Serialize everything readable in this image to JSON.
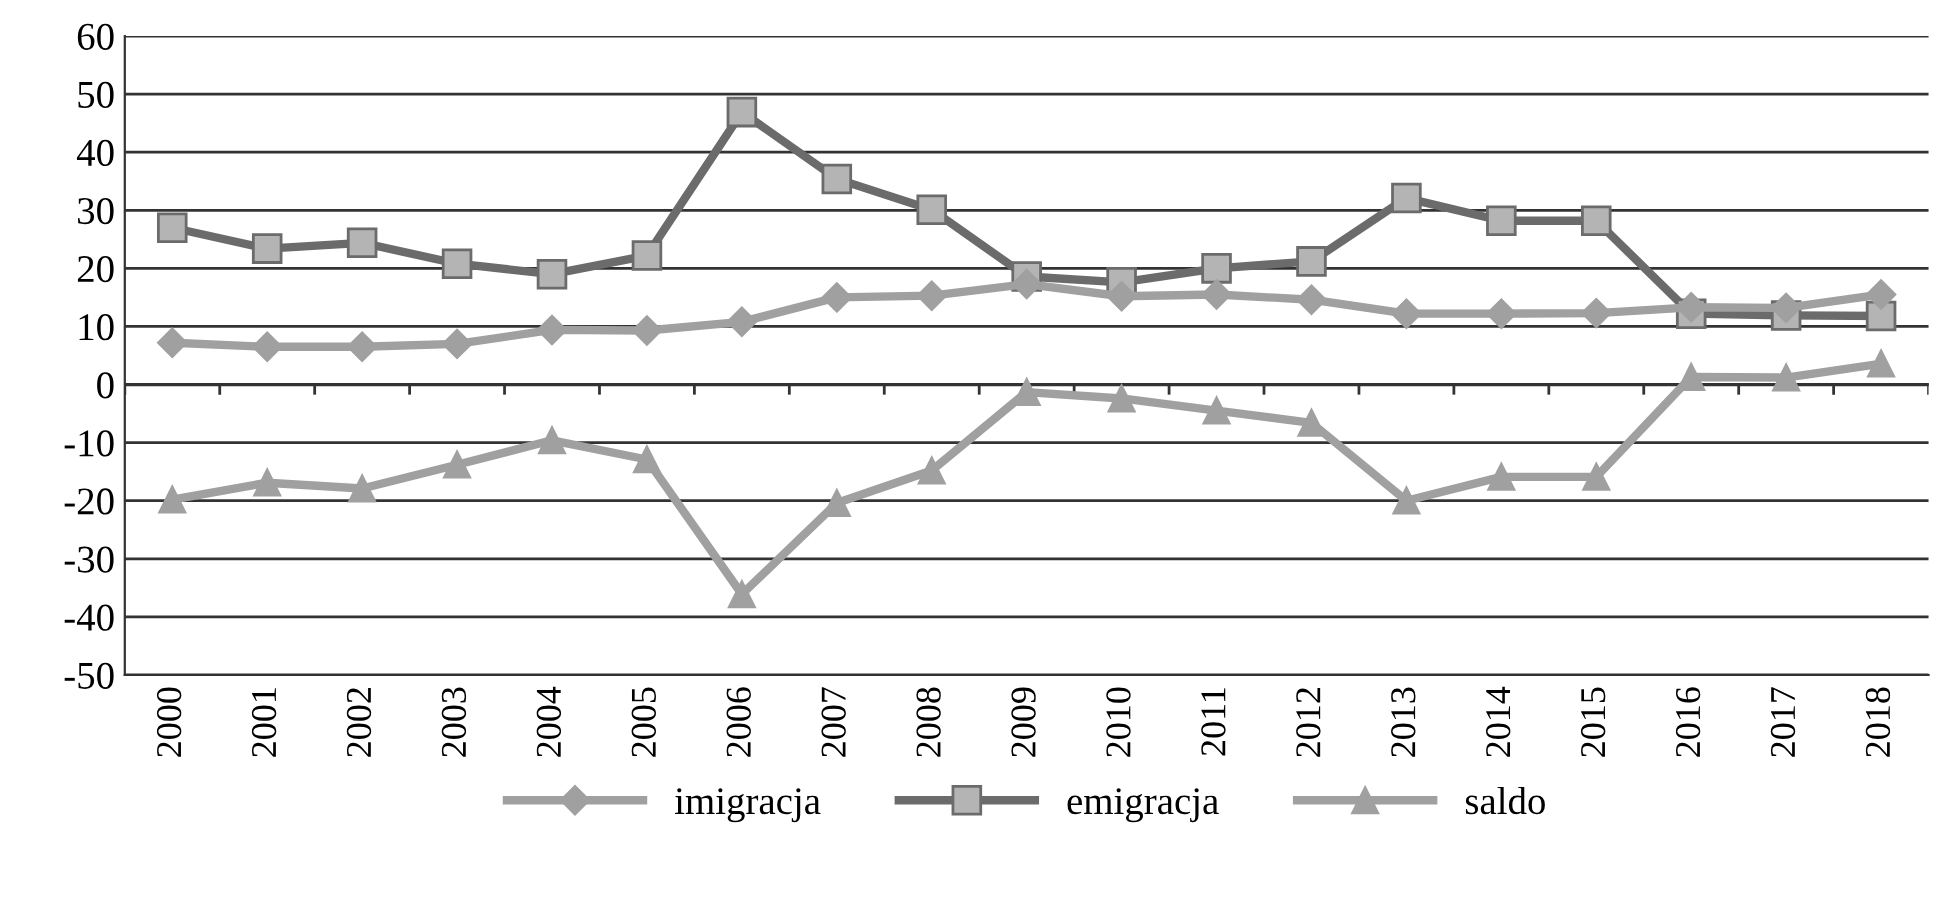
{
  "chart_data": {
    "type": "line",
    "categories": [
      "2000",
      "2001",
      "2002",
      "2003",
      "2004",
      "2005",
      "2006",
      "2007",
      "2008",
      "2009",
      "2010",
      "2011",
      "2012",
      "2013",
      "2014",
      "2015",
      "2016",
      "2017",
      "2018"
    ],
    "series": [
      {
        "name": "imigracja",
        "color": "#a0a0a0",
        "marker": "diamond",
        "values": [
          7.2,
          6.5,
          6.5,
          7,
          9.4,
          9.3,
          10.8,
          15,
          15.3,
          17.3,
          15.2,
          15.5,
          14.6,
          12.2,
          12.2,
          12.3,
          13.3,
          13.2,
          15.5
        ]
      },
      {
        "name": "emigracja",
        "color": "#6b6b6b",
        "marker": "square",
        "values": [
          27,
          23.4,
          24.4,
          20.8,
          19,
          22.2,
          46.9,
          35.4,
          30.1,
          18.6,
          17.6,
          20,
          21.2,
          32.1,
          28.2,
          28.2,
          12.2,
          11.9,
          11.8
        ]
      },
      {
        "name": "saldo",
        "color": "#a0a0a0",
        "marker": "triangle",
        "values": [
          -19.8,
          -16.9,
          -17.9,
          -13.8,
          -9.6,
          -12.9,
          -36.1,
          -20.4,
          -14.8,
          -1.3,
          -2.4,
          -4.5,
          -6.6,
          -20,
          -15.9,
          -15.9,
          1.3,
          1.2,
          3.6
        ]
      }
    ],
    "ylim": [
      -50,
      60
    ],
    "yticks": [
      -50,
      -40,
      -30,
      -20,
      -10,
      0,
      10,
      20,
      30,
      40,
      50,
      60
    ],
    "grid": "y",
    "legend": "bottom",
    "line_style": "solid"
  }
}
